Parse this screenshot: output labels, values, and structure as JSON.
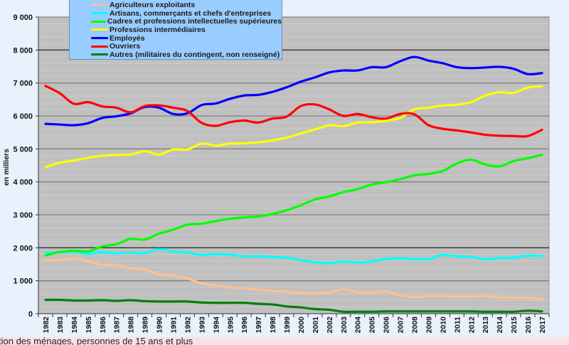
{
  "chart_data": {
    "type": "line",
    "title": "",
    "xlabel": "",
    "ylabel": "en milliers",
    "ylim": [
      0,
      9000
    ],
    "yticks": [
      0,
      1000,
      2000,
      3000,
      4000,
      5000,
      6000,
      7000,
      8000,
      9000
    ],
    "ytick_labels": [
      "0",
      "1 000",
      "2 000",
      "3 000",
      "4 000",
      "5 000",
      "6 000",
      "7 000",
      "8 000",
      "9 000"
    ],
    "grid": true,
    "legend_position": "top-left",
    "x": [
      "1982",
      "1983",
      "1984",
      "1985",
      "1986",
      "1987",
      "1988",
      "1989",
      "1990",
      "1991",
      "1992",
      "1993",
      "1994",
      "1995",
      "1996",
      "1997",
      "1998",
      "1999",
      "2000",
      "2001",
      "2002",
      "2003",
      "2004",
      "2005",
      "2006",
      "2007",
      "2008",
      "2009",
      "2010",
      "2011",
      "2012",
      "2013",
      "2014",
      "2015",
      "2016",
      "2017"
    ],
    "series": [
      {
        "name": "Agriculteurs exploitants",
        "color": "#ffc090",
        "values": [
          1620,
          1620,
          1680,
          1590,
          1480,
          1470,
          1380,
          1330,
          1200,
          1150,
          1070,
          920,
          860,
          800,
          770,
          730,
          690,
          670,
          630,
          620,
          650,
          740,
          660,
          640,
          680,
          560,
          500,
          530,
          530,
          520,
          520,
          530,
          500,
          480,
          480,
          450
        ]
      },
      {
        "name": "Artisans, commerçants et chefs d'entreprises",
        "color": "#00ffff",
        "values": [
          1850,
          1860,
          1880,
          1820,
          1870,
          1830,
          1860,
          1830,
          1960,
          1880,
          1860,
          1780,
          1810,
          1790,
          1740,
          1740,
          1720,
          1700,
          1620,
          1560,
          1540,
          1580,
          1550,
          1590,
          1660,
          1680,
          1660,
          1660,
          1780,
          1740,
          1720,
          1650,
          1690,
          1700,
          1760,
          1750
        ]
      },
      {
        "name": "Cadres et professions intellectuelles supérieures",
        "color": "#00ff00",
        "values": [
          1770,
          1870,
          1910,
          1890,
          2040,
          2110,
          2270,
          2250,
          2430,
          2550,
          2700,
          2730,
          2810,
          2880,
          2920,
          2950,
          3030,
          3140,
          3290,
          3470,
          3560,
          3690,
          3780,
          3920,
          3990,
          4080,
          4200,
          4240,
          4330,
          4560,
          4670,
          4530,
          4470,
          4630,
          4720,
          4820
        ]
      },
      {
        "name": "Professions intermédiaires",
        "color": "#ffff00",
        "values": [
          4450,
          4580,
          4650,
          4730,
          4790,
          4820,
          4830,
          4930,
          4830,
          4980,
          4980,
          5160,
          5100,
          5160,
          5170,
          5200,
          5260,
          5340,
          5470,
          5590,
          5720,
          5690,
          5800,
          5810,
          5850,
          5940,
          6200,
          6250,
          6320,
          6340,
          6420,
          6620,
          6720,
          6700,
          6860,
          6900
        ]
      },
      {
        "name": "Employés",
        "color": "#0000ff",
        "values": [
          5760,
          5740,
          5720,
          5780,
          5940,
          5990,
          6080,
          6270,
          6250,
          6060,
          6080,
          6330,
          6380,
          6520,
          6620,
          6640,
          6730,
          6870,
          7040,
          7170,
          7320,
          7380,
          7380,
          7480,
          7480,
          7660,
          7790,
          7680,
          7600,
          7480,
          7450,
          7470,
          7490,
          7430,
          7270,
          7300
        ]
      },
      {
        "name": "Ouvriers",
        "color": "#ff0000",
        "values": [
          6910,
          6690,
          6370,
          6420,
          6290,
          6250,
          6110,
          6300,
          6320,
          6250,
          6150,
          5790,
          5700,
          5810,
          5860,
          5800,
          5920,
          5980,
          6300,
          6350,
          6200,
          6000,
          6060,
          5960,
          5920,
          6060,
          6050,
          5720,
          5610,
          5560,
          5500,
          5430,
          5400,
          5390,
          5390,
          5580
        ]
      },
      {
        "name": "Autres (militaires du contingent, non renseigné)",
        "color": "#008000",
        "values": [
          420,
          420,
          400,
          400,
          410,
          390,
          410,
          380,
          370,
          370,
          370,
          340,
          330,
          330,
          330,
          300,
          280,
          220,
          190,
          140,
          120,
          60,
          60,
          60,
          70,
          70,
          70,
          70,
          70,
          70,
          70,
          60,
          60,
          60,
          90,
          70
        ]
      }
    ]
  },
  "footer": {
    "text": "tion des ménages, personnes de 15 ans et plus"
  },
  "colors": {
    "page_background": "#e8f1fc",
    "plot_background": "#c0c0c0",
    "legend_background": "#99ccff",
    "footer_background": "#fbe1e4"
  }
}
